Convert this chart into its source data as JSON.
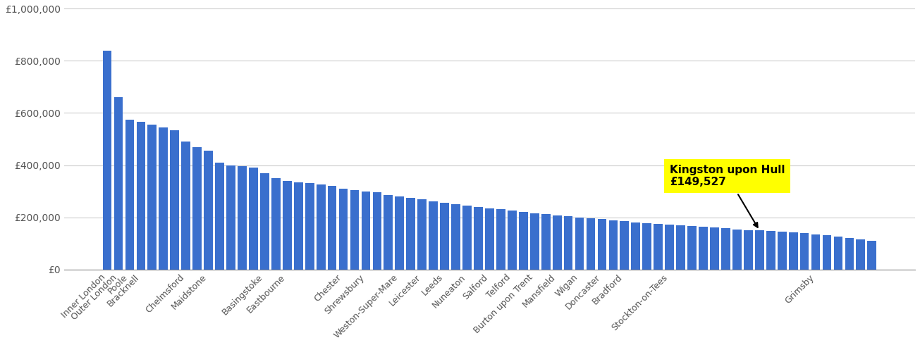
{
  "full_values": [
    840000,
    660000,
    575000,
    565000,
    555000,
    545000,
    535000,
    490000,
    470000,
    455000,
    410000,
    400000,
    395000,
    390000,
    370000,
    350000,
    340000,
    335000,
    330000,
    325000,
    320000,
    310000,
    305000,
    300000,
    295000,
    285000,
    280000,
    275000,
    268000,
    262000,
    256000,
    250000,
    245000,
    240000,
    235000,
    230000,
    225000,
    220000,
    216000,
    212000,
    208000,
    204000,
    200000,
    196000,
    192000,
    188000,
    184000,
    181000,
    178000,
    175000,
    172000,
    169000,
    166000,
    163000,
    160000,
    157000,
    154000,
    151000,
    149527,
    147000,
    144000,
    141000,
    138000,
    134000,
    130000,
    126000,
    121000,
    115000,
    110000
  ],
  "xtick_labels_map": {
    "0": "Inner London",
    "1": "Outer London",
    "2": "Poole",
    "3": "Bracknell",
    "7": "Chelmsford",
    "9": "Maidstone",
    "14": "Basingstoke",
    "16": "Eastbourne",
    "21": "Chester",
    "23": "Shrewsbury",
    "26": "Weston-Super-Mare",
    "28": "Leicester",
    "30": "Leeds",
    "32": "Nuneaton",
    "34": "Salford",
    "36": "Telford",
    "38": "Burton upon Trent",
    "40": "Mansfield",
    "42": "Wigan",
    "44": "Doncaster",
    "46": "Bradford",
    "50": "Stockton-on-Tees",
    "63": "Grimsby"
  },
  "hull_index": 58,
  "hull_value": 149527,
  "highlight_label": "Kingston upon Hull\n£149,527",
  "bar_color": "#3a6fcd",
  "annotation_bg_color": "#ffff00",
  "ytick_values": [
    0,
    200000,
    400000,
    600000,
    800000,
    1000000
  ],
  "ylabel_ticks": [
    "£0",
    "£200,000",
    "£400,000",
    "£600,000",
    "£800,000",
    "£1,000,000"
  ],
  "background_color": "#ffffff"
}
